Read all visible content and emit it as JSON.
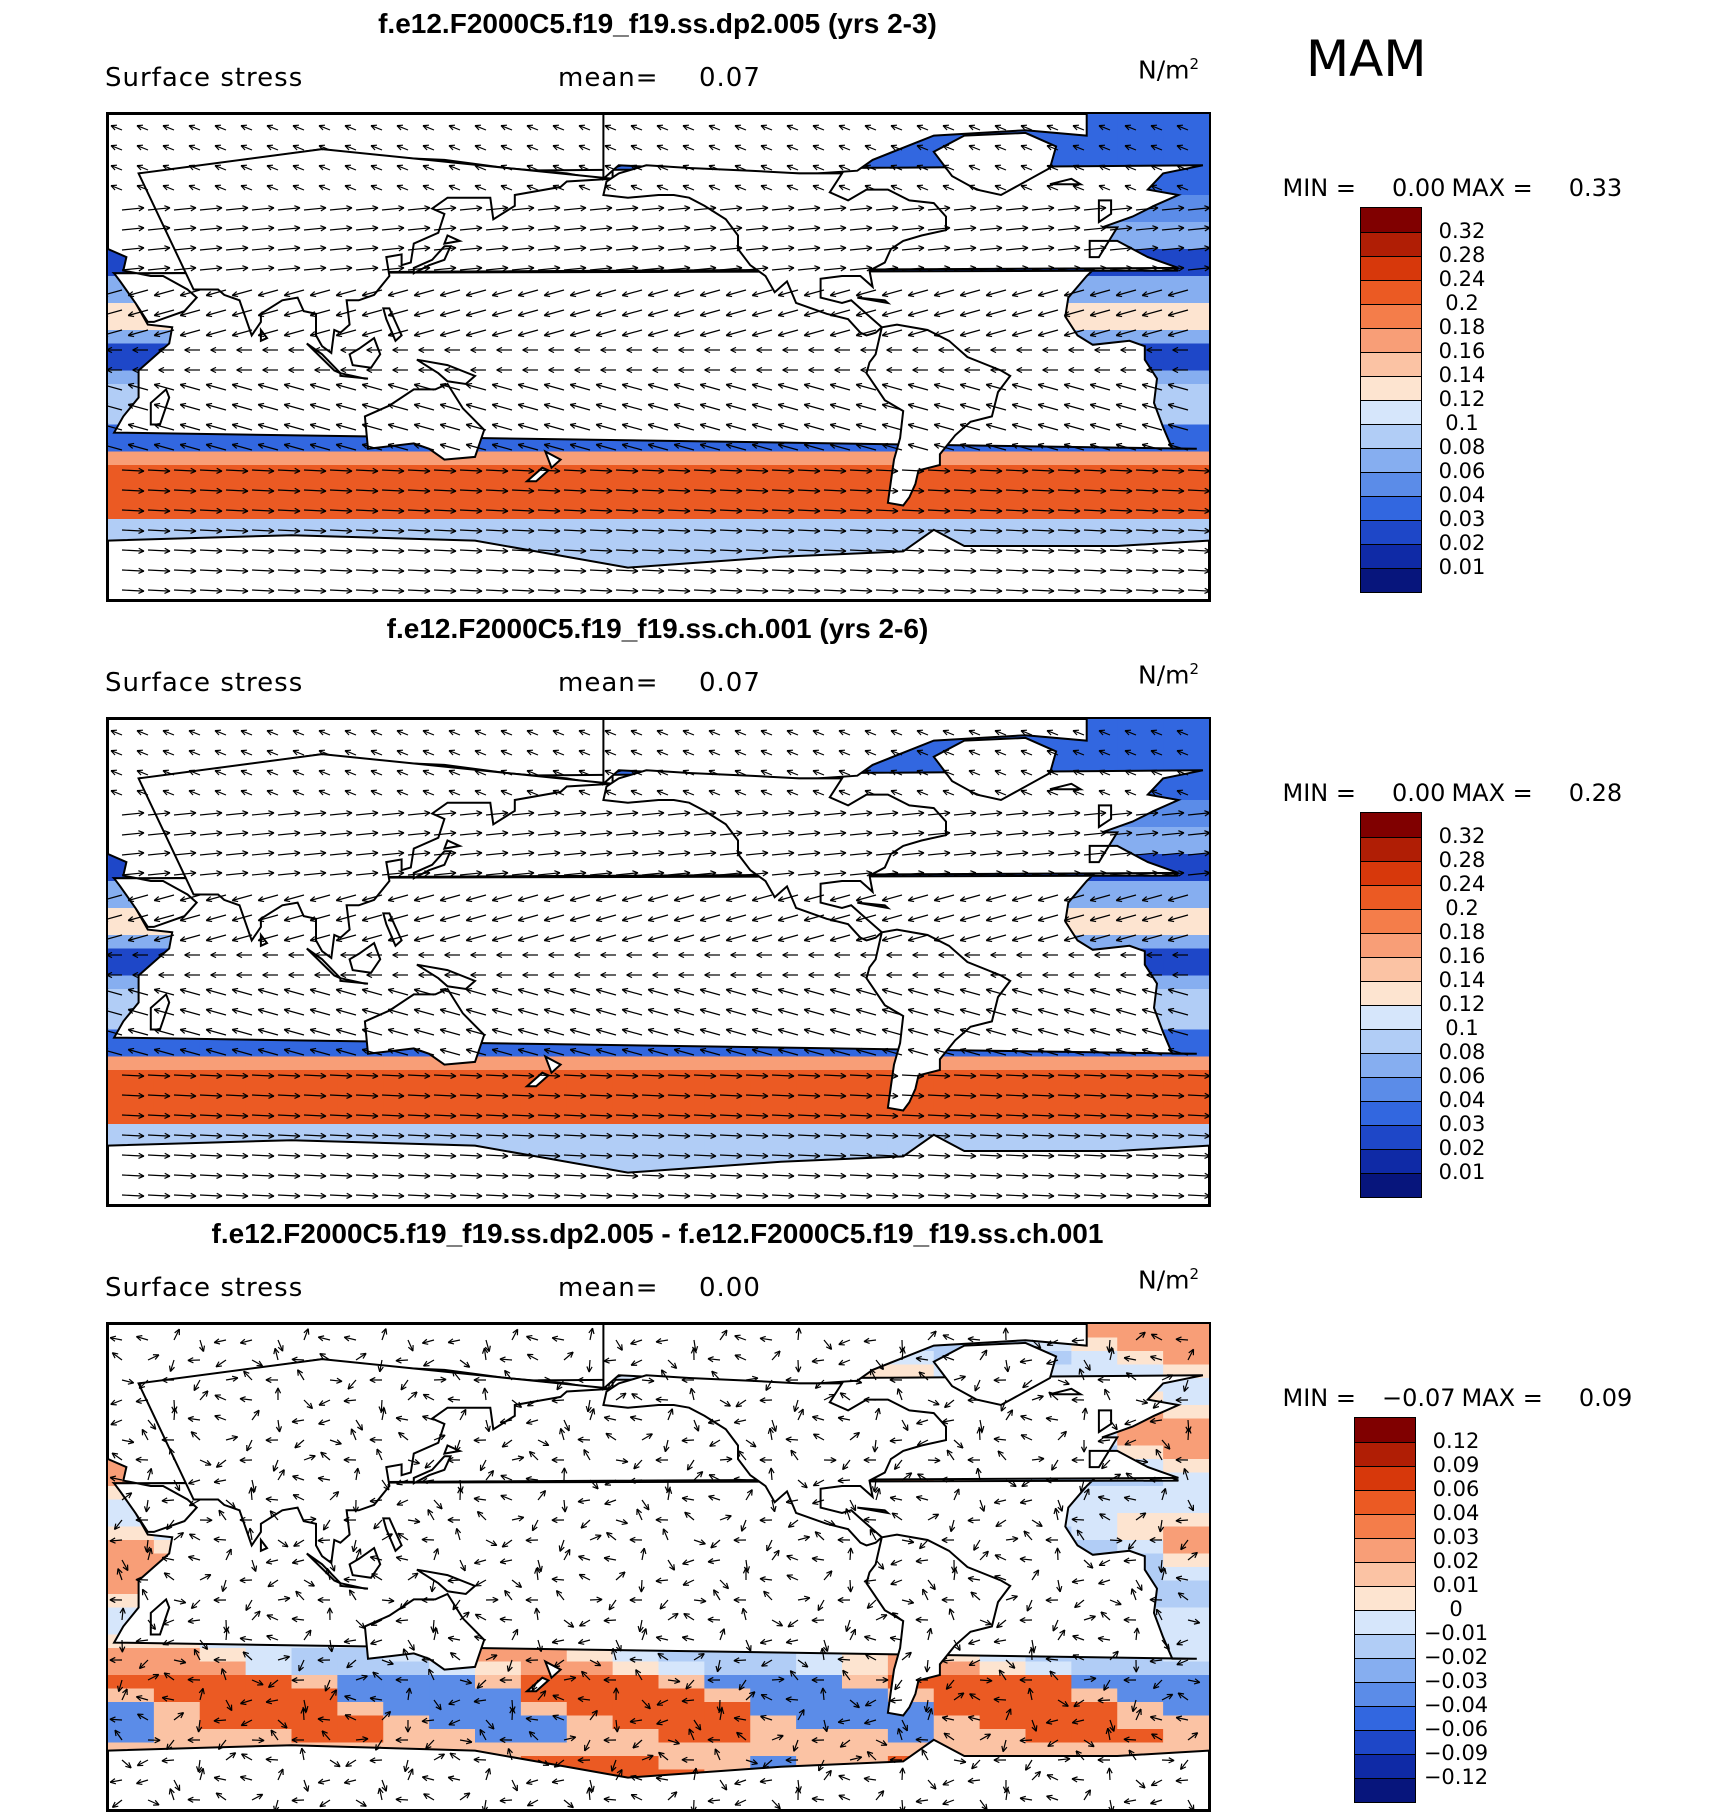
{
  "season": "MAM",
  "panels": [
    {
      "title": "f.e12.F2000C5.f19_f19.ss.dp2.005 (yrs 2-3)",
      "field": "Surface stress",
      "mean_label": "mean=",
      "mean_value": "0.07",
      "units": "N/m",
      "units_sup": "2",
      "min_label": "MIN =",
      "min_value": "0.00",
      "max_label": "MAX =",
      "max_value": "0.33",
      "kind": "abs",
      "colorbar": [
        "0.32",
        "0.28",
        "0.24",
        "0.2",
        "0.18",
        "0.16",
        "0.14",
        "0.12",
        "0.1",
        "0.08",
        "0.06",
        "0.04",
        "0.03",
        "0.02",
        "0.01"
      ],
      "colors": [
        "#800000",
        "#b01e05",
        "#d7380b",
        "#eb5a23",
        "#f47d4a",
        "#f89e77",
        "#fbc3a4",
        "#fde4d0",
        "#d6e6fb",
        "#b1cdf6",
        "#86aef0",
        "#5b8ce8",
        "#3267e0",
        "#1e47c8",
        "#0f2aa6",
        "#07157c"
      ]
    },
    {
      "title": "f.e12.F2000C5.f19_f19.ss.ch.001 (yrs 2-6)",
      "field": "Surface stress",
      "mean_label": "mean=",
      "mean_value": "0.07",
      "units": "N/m",
      "units_sup": "2",
      "min_label": "MIN =",
      "min_value": "0.00",
      "max_label": "MAX =",
      "max_value": "0.28",
      "kind": "abs",
      "colorbar": [
        "0.32",
        "0.28",
        "0.24",
        "0.2",
        "0.18",
        "0.16",
        "0.14",
        "0.12",
        "0.1",
        "0.08",
        "0.06",
        "0.04",
        "0.03",
        "0.02",
        "0.01"
      ],
      "colors": [
        "#800000",
        "#b01e05",
        "#d7380b",
        "#eb5a23",
        "#f47d4a",
        "#f89e77",
        "#fbc3a4",
        "#fde4d0",
        "#d6e6fb",
        "#b1cdf6",
        "#86aef0",
        "#5b8ce8",
        "#3267e0",
        "#1e47c8",
        "#0f2aa6",
        "#07157c"
      ]
    },
    {
      "title": "f.e12.F2000C5.f19_f19.ss.dp2.005 - f.e12.F2000C5.f19_f19.ss.ch.001",
      "field": "Surface stress",
      "mean_label": "mean=",
      "mean_value": "0.00",
      "units": "N/m",
      "units_sup": "2",
      "min_label": "MIN =",
      "min_value": "−0.07",
      "max_label": "MAX =",
      "max_value": "0.09",
      "kind": "diff",
      "colorbar": [
        "0.12",
        "0.09",
        "0.06",
        "0.04",
        "0.03",
        "0.02",
        "0.01",
        "0",
        "−0.01",
        "−0.02",
        "−0.03",
        "−0.04",
        "−0.06",
        "−0.09",
        "−0.12"
      ],
      "colors": [
        "#800000",
        "#b01e05",
        "#d7380b",
        "#eb5a23",
        "#f47d4a",
        "#f89e77",
        "#fbc3a4",
        "#fde4d0",
        "#d6e6fb",
        "#b1cdf6",
        "#86aef0",
        "#5b8ce8",
        "#3267e0",
        "#1e47c8",
        "#0f2aa6",
        "#07157c"
      ]
    }
  ]
}
